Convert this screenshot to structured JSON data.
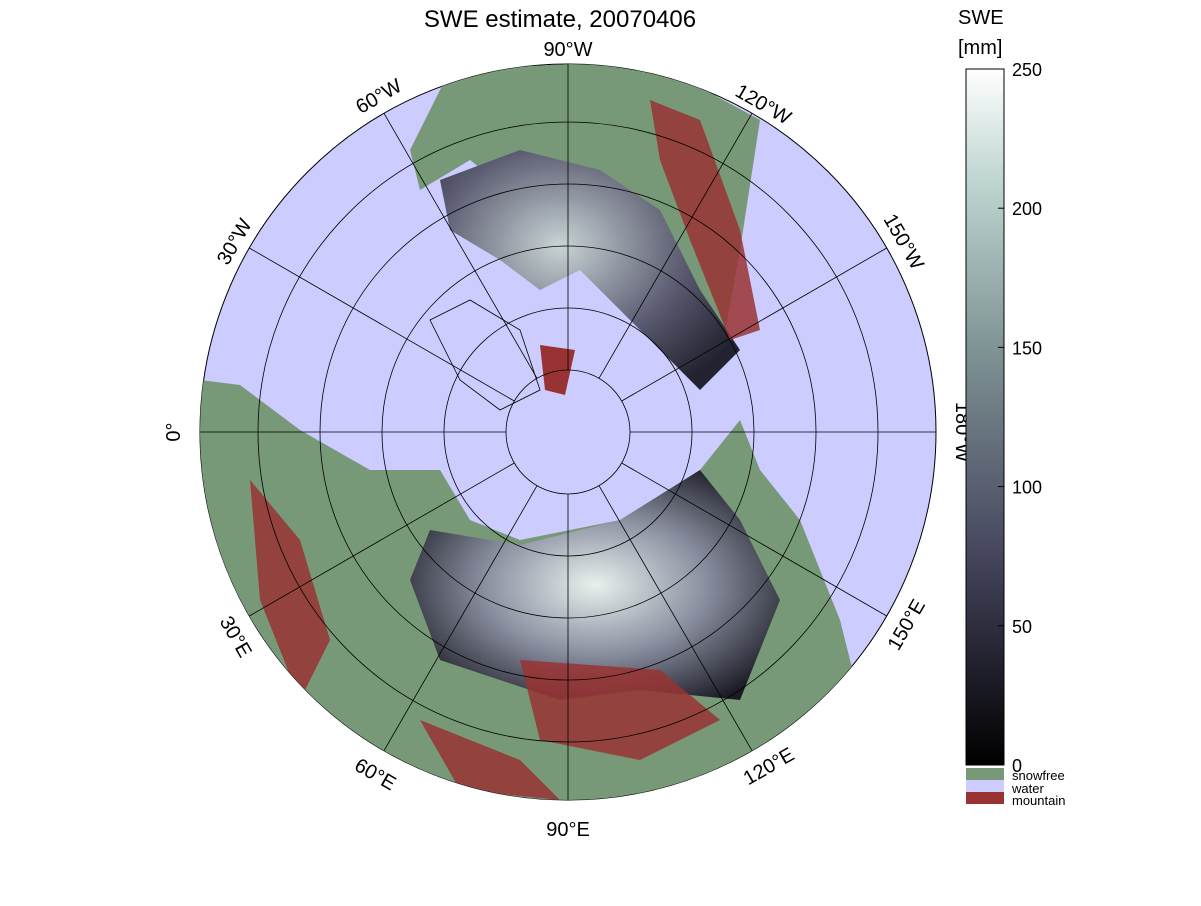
{
  "title": "SWE estimate, 20070406",
  "meridian_labels": [
    "90°W",
    "120°W",
    "150°W",
    "180°W",
    "150°E",
    "120°E",
    "90°E",
    "60°E",
    "30°E",
    "0°",
    "30°W",
    "60°W"
  ],
  "colorbar": {
    "label": [
      "SWE",
      "[mm]"
    ],
    "lim": [
      0,
      250
    ],
    "ticks": [
      0,
      50,
      100,
      150,
      200,
      250
    ]
  },
  "legend": [
    "snowfree",
    "water",
    "mountain"
  ]
}
